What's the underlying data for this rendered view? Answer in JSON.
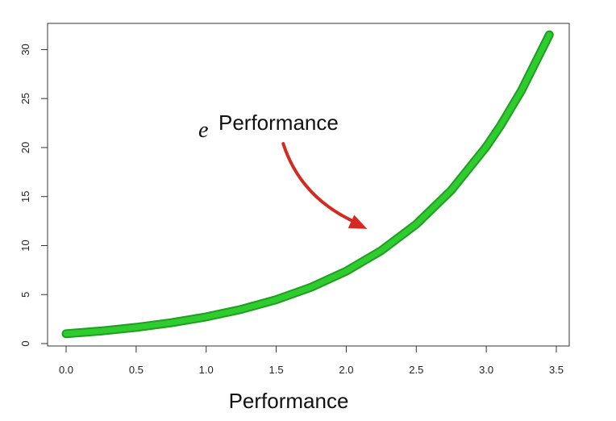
{
  "colors": {
    "curve": "#2ecc2e",
    "curve_edge": "#1f9e1f",
    "arrow": "#d42a1f",
    "axis": "#333333"
  },
  "chart_data": {
    "type": "line",
    "title": "",
    "xlabel": "Performance",
    "ylabel": "",
    "xlim": [
      0,
      3.5
    ],
    "ylim": [
      0,
      31.6
    ],
    "x_ticks": [
      0.0,
      0.5,
      1.0,
      1.5,
      2.0,
      2.5,
      3.0,
      3.5
    ],
    "x_tick_labels": [
      "0.0",
      "0.5",
      "1.0",
      "1.5",
      "2.0",
      "2.5",
      "3.0",
      "3.5"
    ],
    "y_ticks": [
      0,
      5,
      10,
      15,
      20,
      25,
      30
    ],
    "y_tick_labels": [
      "0",
      "5",
      "10",
      "15",
      "20",
      "25",
      "30"
    ],
    "grid": false,
    "series": [
      {
        "x": [
          0.0,
          0.25,
          0.5,
          0.75,
          1.0,
          1.25,
          1.5,
          1.75,
          2.0,
          2.25,
          2.5,
          2.75,
          3.0,
          3.1,
          3.25,
          3.45
        ],
        "y": [
          1.0,
          1.28,
          1.65,
          2.12,
          2.72,
          3.49,
          4.48,
          5.75,
          7.39,
          9.49,
          12.18,
          15.64,
          20.09,
          22.2,
          25.8,
          31.5
        ]
      }
    ],
    "annotation": {
      "base": "e",
      "exponent": "Performance",
      "arrow_from": [
        1.55,
        20.4
      ],
      "arrow_to": [
        2.15,
        11.7
      ]
    }
  }
}
